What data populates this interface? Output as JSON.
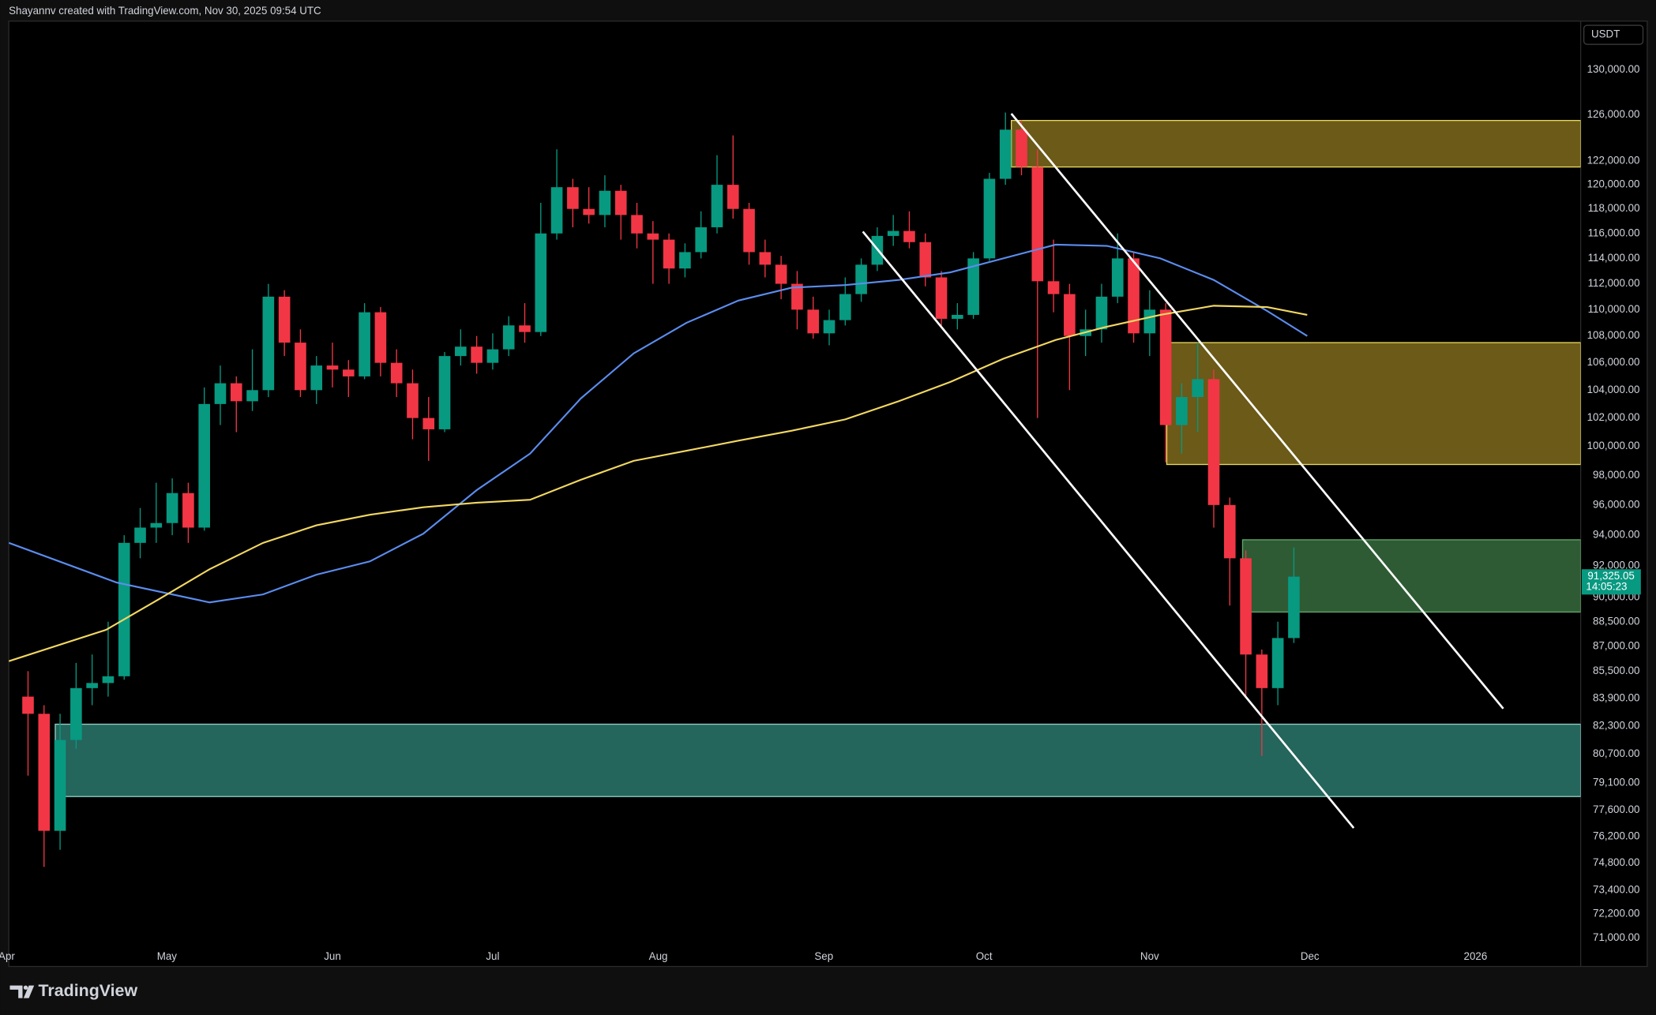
{
  "chart_data": {
    "type": "candlestick",
    "header": "Shayannv created with TradingView.com, Nov 30, 2025 09:54 UTC",
    "currency": "USDT",
    "brand": "TradingView",
    "log_scale": true,
    "grid": false,
    "ylim": [
      69600,
      134500
    ],
    "yticks": [
      {
        "value": 130000,
        "label": "130,000.00"
      },
      {
        "value": 126000,
        "label": "126,000.00"
      },
      {
        "value": 122000,
        "label": "122,000.00"
      },
      {
        "value": 120000,
        "label": "120,000.00"
      },
      {
        "value": 118000,
        "label": "118,000.00"
      },
      {
        "value": 116000,
        "label": "116,000.00"
      },
      {
        "value": 114000,
        "label": "114,000.00"
      },
      {
        "value": 112000,
        "label": "112,000.00"
      },
      {
        "value": 110000,
        "label": "110,000.00"
      },
      {
        "value": 108000,
        "label": "108,000.00"
      },
      {
        "value": 106000,
        "label": "106,000.00"
      },
      {
        "value": 104000,
        "label": "104,000.00"
      },
      {
        "value": 102000,
        "label": "102,000.00"
      },
      {
        "value": 100000,
        "label": "100,000.00"
      },
      {
        "value": 98000,
        "label": "98,000.00"
      },
      {
        "value": 96000,
        "label": "96,000.00"
      },
      {
        "value": 94000,
        "label": "94,000.00"
      },
      {
        "value": 92000,
        "label": "92,000.00"
      },
      {
        "value": 90000,
        "label": "90,000.00"
      },
      {
        "value": 88500,
        "label": "88,500.00"
      },
      {
        "value": 87000,
        "label": "87,000.00"
      },
      {
        "value": 85500,
        "label": "85,500.00"
      },
      {
        "value": 83900,
        "label": "83,900.00"
      },
      {
        "value": 82300,
        "label": "82,300.00"
      },
      {
        "value": 80700,
        "label": "80,700.00"
      },
      {
        "value": 79100,
        "label": "79,100.00"
      },
      {
        "value": 77600,
        "label": "77,600.00"
      },
      {
        "value": 76200,
        "label": "76,200.00"
      },
      {
        "value": 74800,
        "label": "74,800.00"
      },
      {
        "value": 73400,
        "label": "73,400.00"
      },
      {
        "value": 72200,
        "label": "72,200.00"
      },
      {
        "value": 71000,
        "label": "71,000.00"
      }
    ],
    "xlim": [
      0.4,
      294.7
    ],
    "xticks": [
      {
        "value": 0,
        "label": "Apr"
      },
      {
        "value": 30,
        "label": "May"
      },
      {
        "value": 61,
        "label": "Jun"
      },
      {
        "value": 91,
        "label": "Jul"
      },
      {
        "value": 122,
        "label": "Aug"
      },
      {
        "value": 153,
        "label": "Sep"
      },
      {
        "value": 183,
        "label": "Oct"
      },
      {
        "value": 214,
        "label": "Nov"
      },
      {
        "value": 244,
        "label": "Dec"
      },
      {
        "value": 275,
        "label": "2026"
      }
    ],
    "candles": {
      "up_color": "#089981",
      "down_color": "#f23645",
      "x": [
        4,
        7,
        10,
        13,
        16,
        19,
        22,
        25,
        28,
        31,
        34,
        37,
        40,
        43,
        46,
        49,
        52,
        55,
        58,
        61,
        64,
        67,
        70,
        73,
        76,
        79,
        82,
        85,
        88,
        91,
        94,
        97,
        100,
        103,
        106,
        109,
        112,
        115,
        118,
        121,
        124,
        127,
        130,
        133,
        136,
        139,
        142,
        145,
        148,
        151,
        154,
        157,
        160,
        163,
        166,
        169,
        172,
        175,
        178,
        181,
        184,
        187,
        190,
        193,
        196,
        199,
        202,
        205,
        208,
        211,
        214,
        217,
        220,
        223,
        226,
        229,
        232,
        235,
        238,
        241
      ],
      "open": [
        84000,
        83000,
        76500,
        81500,
        84500,
        84800,
        85200,
        93500,
        94500,
        94800,
        96800,
        94500,
        103000,
        104500,
        103200,
        104000,
        111000,
        107500,
        104000,
        105800,
        105500,
        105000,
        109800,
        106000,
        104500,
        102000,
        101200,
        106500,
        107200,
        106000,
        107000,
        108800,
        108300,
        116000,
        119800,
        118000,
        117500,
        119500,
        117500,
        116000,
        115500,
        113200,
        114500,
        116500,
        120000,
        118000,
        114500,
        113500,
        112000,
        110000,
        108200,
        109200,
        111200,
        113500,
        115800,
        116200,
        115300,
        112500,
        109300,
        109600,
        114000,
        120500,
        124700,
        121500,
        112200,
        111200,
        108000,
        108500,
        111000,
        114000,
        108200,
        110000,
        101500,
        103500,
        104800,
        96000,
        92500,
        86500,
        84500,
        87500
      ],
      "close": [
        83000,
        76500,
        81500,
        84500,
        84800,
        85200,
        93500,
        94500,
        94800,
        96800,
        94500,
        103000,
        104500,
        103200,
        104000,
        111000,
        107500,
        104000,
        105800,
        105500,
        105000,
        109800,
        106000,
        104500,
        102000,
        101200,
        106500,
        107200,
        106000,
        107000,
        108800,
        108300,
        116000,
        119800,
        118000,
        117500,
        119500,
        117500,
        116000,
        115500,
        113200,
        114500,
        116500,
        120000,
        118000,
        114500,
        113500,
        112000,
        110000,
        108200,
        109200,
        111200,
        113500,
        115800,
        116200,
        115300,
        112500,
        109300,
        109600,
        114000,
        120500,
        124700,
        121500,
        112200,
        111200,
        108000,
        108500,
        111000,
        114000,
        108200,
        110000,
        101500,
        103500,
        104800,
        96000,
        92500,
        86500,
        84500,
        87500,
        91325.05
      ],
      "high": [
        85500,
        83500,
        83000,
        86000,
        86500,
        88500,
        94000,
        95800,
        97500,
        97800,
        97500,
        104200,
        105800,
        105000,
        107000,
        112000,
        111500,
        108500,
        106500,
        107500,
        106200,
        110500,
        110200,
        107000,
        105500,
        103500,
        106800,
        108500,
        108000,
        108200,
        109500,
        110500,
        118500,
        123000,
        120500,
        119800,
        120800,
        120000,
        118500,
        117000,
        116000,
        115200,
        117800,
        122500,
        124200,
        118500,
        115500,
        114200,
        113000,
        111000,
        110000,
        112500,
        114000,
        116500,
        117500,
        117800,
        116000,
        113000,
        110500,
        114500,
        121000,
        126200,
        125500,
        123000,
        115500,
        112000,
        110000,
        112000,
        116000,
        114500,
        111500,
        110500,
        104500,
        107500,
        105500,
        96500,
        93000,
        86800,
        88500,
        93200
      ],
      "low": [
        79500,
        74600,
        75500,
        81000,
        83500,
        84000,
        85000,
        92500,
        93500,
        94000,
        93500,
        94300,
        101500,
        101000,
        102500,
        103500,
        106500,
        103500,
        103000,
        104200,
        103500,
        104800,
        105000,
        103500,
        100500,
        99000,
        101000,
        105800,
        105200,
        105500,
        106500,
        107500,
        108000,
        115500,
        116500,
        116800,
        116500,
        115500,
        114800,
        112000,
        112000,
        112500,
        114000,
        116000,
        117200,
        113500,
        112500,
        110800,
        108500,
        107800,
        107300,
        108800,
        110600,
        113000,
        115000,
        114800,
        111800,
        108700,
        108500,
        109300,
        113800,
        120000,
        120800,
        102000,
        109800,
        104000,
        106500,
        107500,
        110500,
        107500,
        106500,
        98900,
        99500,
        101000,
        94500,
        89500,
        84000,
        80600,
        83500,
        87200
      ]
    },
    "moving_averages": [
      {
        "color": "#5b8def",
        "x": [
          0.4,
          20.6,
          38,
          48,
          58,
          68,
          78,
          88,
          98,
          107.5,
          117.4,
          127.3,
          137,
          147,
          157,
          167,
          176.7,
          186.6,
          196.4,
          206,
          216,
          226,
          236,
          243.5
        ],
        "values": [
          93500,
          90950,
          89700,
          90200,
          91450,
          92300,
          94100,
          97000,
          99500,
          103400,
          106700,
          109000,
          110700,
          111700,
          111900,
          112300,
          112900,
          114000,
          115100,
          115000,
          114000,
          112300,
          109900,
          108000
        ]
      },
      {
        "color": "#f2d862",
        "x": [
          0.4,
          18.6,
          28.5,
          38,
          48,
          58,
          68,
          78,
          88,
          98,
          107.5,
          117.4,
          127.3,
          137,
          147,
          157,
          167,
          176.7,
          186.6,
          196.4,
          206,
          216,
          226,
          236,
          243.5
        ],
        "values": [
          86100,
          88000,
          89900,
          91800,
          93500,
          94650,
          95350,
          95850,
          96150,
          96350,
          97700,
          99000,
          99700,
          100400,
          101100,
          101900,
          103200,
          104600,
          106300,
          107700,
          108700,
          109600,
          110300,
          110200,
          109600
        ]
      }
    ],
    "zones": [
      {
        "x0": 188.1,
        "low": 121500,
        "high": 125500,
        "fill": "#6b5a18",
        "stroke": "#e8d85c"
      },
      {
        "x0": 217.2,
        "low": 98750,
        "high": 107500,
        "fill": "#6b5a18",
        "stroke": "#e8d85c"
      },
      {
        "x0": 231.4,
        "low": 89100,
        "high": 93700,
        "fill": "#2e5b34",
        "stroke": "#5fa86a"
      },
      {
        "x0": 9.1,
        "low": 78350,
        "high": 82400,
        "fill": "#24655c",
        "stroke": "#8fcfc4"
      }
    ],
    "trendlines": [
      {
        "color": "#ffffff",
        "x": [
          160.3,
          252.2
        ],
        "values": [
          116150,
          76650
        ]
      },
      {
        "color": "#ffffff",
        "x": [
          188.1,
          280.2
        ],
        "values": [
          126100,
          83300
        ]
      }
    ],
    "last_price": {
      "value": 91325.05,
      "label": "91,325.05"
    },
    "countdown": "14:05:23"
  }
}
